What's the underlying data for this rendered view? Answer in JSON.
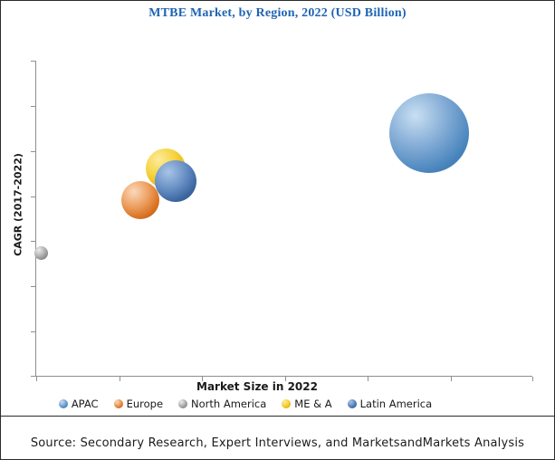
{
  "chart": {
    "title": "MTBE Market, by Region, 2022 (USD Billion)",
    "title_color": "#1e64b4",
    "y_axis_label": "CAGR (2017-2022)",
    "x_axis_label": "Market Size in 2022",
    "axis_color": "#8f8f8f"
  },
  "chart_data": {
    "type": "scatter",
    "subtype": "bubble",
    "title": "MTBE Market, by Region, 2022 (USD Billion)",
    "xlabel": "Market Size in 2022",
    "ylabel": "CAGR (2017-2022)",
    "grid": false,
    "axes_have_numeric_labels": false,
    "x_tick_count": 7,
    "y_tick_count": 8,
    "legend_position": "bottom",
    "note": "Axes are unlabeled numerically; positions are fractions of plot area (x: 0=left, 1=right; y: 0=bottom, 1=top), bubble size in screen px radius.",
    "series": [
      {
        "name": "APAC",
        "x_frac": 0.79,
        "y_frac": 0.77,
        "radius_px": 44,
        "z": 1,
        "colors": {
          "highlight": "#c9dff2",
          "mid": "#7fa9d4",
          "base": "#4a86be",
          "edge": "#33639a"
        }
      },
      {
        "name": "Europe",
        "x_frac": 0.21,
        "y_frac": 0.56,
        "radius_px": 21,
        "z": 2,
        "colors": {
          "highlight": "#fad9bb",
          "mid": "#ec9d5c",
          "base": "#d66f1e",
          "edge": "#a55413"
        }
      },
      {
        "name": "North America",
        "x_frac": 0.01,
        "y_frac": 0.39,
        "radius_px": 7.5,
        "z": 1,
        "colors": {
          "highlight": "#ececec",
          "mid": "#b5b5b5",
          "base": "#8c8c8c",
          "edge": "#636363"
        }
      },
      {
        "name": "ME & A",
        "x_frac": 0.26,
        "y_frac": 0.66,
        "radius_px": 22,
        "z": 1,
        "colors": {
          "highlight": "#fdeb9e",
          "mid": "#f6d33f",
          "base": "#e8b60c",
          "edge": "#b28a06"
        }
      },
      {
        "name": "Latin America",
        "x_frac": 0.28,
        "y_frac": 0.62,
        "radius_px": 23,
        "z": 3,
        "colors": {
          "highlight": "#a7c4e6",
          "mid": "#6890c5",
          "base": "#3c66a0",
          "edge": "#29497a"
        }
      }
    ]
  },
  "source": {
    "text": "Source: Secondary Research, Expert Interviews, and MarketsandMarkets Analysis"
  }
}
